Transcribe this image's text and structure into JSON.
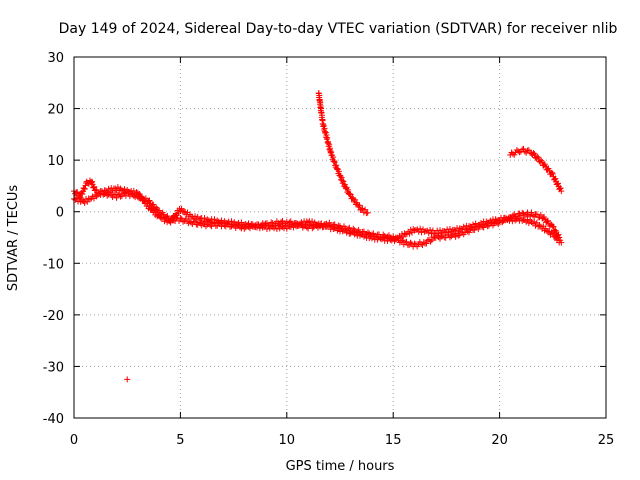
{
  "chart_data": {
    "type": "scatter",
    "title": "Day 149 of 2024, Sidereal Day-to-day VTEC variation (SDTVAR) for receiver nlib",
    "xlabel": "GPS time / hours",
    "ylabel": "SDTVAR / TECUs",
    "xlim": [
      0,
      25
    ],
    "ylim": [
      -40,
      30
    ],
    "xticks": [
      0,
      5,
      10,
      15,
      20,
      25
    ],
    "yticks": [
      -40,
      -30,
      -20,
      -10,
      0,
      10,
      20,
      30
    ],
    "grid": true,
    "marker": "+",
    "colors": {
      "series": "#ff0000"
    },
    "series": [
      {
        "name": "track-1",
        "points": [
          [
            0,
            4
          ],
          [
            0.3,
            3
          ],
          [
            0.6,
            5.5
          ],
          [
            0.8,
            6
          ],
          [
            1,
            4
          ],
          [
            1.5,
            3.5
          ],
          [
            2,
            3
          ],
          [
            2.5,
            3.5
          ],
          [
            3,
            3
          ],
          [
            3.5,
            2
          ],
          [
            4,
            0
          ],
          [
            4.5,
            -1.5
          ],
          [
            5,
            -1.5
          ],
          [
            5.5,
            -2
          ],
          [
            6,
            -2.5
          ],
          [
            7,
            -2.5
          ],
          [
            8,
            -3
          ],
          [
            9,
            -2.5
          ],
          [
            10,
            -2
          ],
          [
            11,
            -3
          ],
          [
            12,
            -2.5
          ],
          [
            13,
            -3.5
          ],
          [
            14,
            -4.5
          ],
          [
            15,
            -5
          ],
          [
            15.5,
            -6
          ],
          [
            16,
            -6.5
          ],
          [
            16.5,
            -6
          ],
          [
            17,
            -5
          ],
          [
            18,
            -4.5
          ],
          [
            19,
            -3
          ],
          [
            20,
            -2
          ],
          [
            20.5,
            -1
          ],
          [
            21,
            -0.5
          ],
          [
            21.5,
            -0.5
          ],
          [
            22,
            -1
          ],
          [
            22.5,
            -3
          ],
          [
            22.8,
            -5
          ]
        ]
      },
      {
        "name": "track-2",
        "points": [
          [
            0,
            2.5
          ],
          [
            0.5,
            2
          ],
          [
            1,
            3
          ],
          [
            1.5,
            4
          ],
          [
            2,
            4.5
          ],
          [
            2.5,
            4
          ],
          [
            3,
            3.5
          ],
          [
            3.5,
            1
          ],
          [
            4,
            -1
          ],
          [
            4.5,
            -2
          ],
          [
            5,
            0.5
          ],
          [
            5.5,
            -1
          ],
          [
            6,
            -1.5
          ],
          [
            7,
            -2
          ],
          [
            8,
            -2.5
          ],
          [
            9,
            -3
          ],
          [
            10,
            -3
          ],
          [
            11,
            -2
          ],
          [
            12,
            -3
          ],
          [
            13,
            -4
          ],
          [
            14,
            -5
          ],
          [
            15,
            -5.5
          ],
          [
            16,
            -3.5
          ],
          [
            17,
            -4
          ],
          [
            18,
            -3.5
          ],
          [
            19,
            -2.5
          ],
          [
            20,
            -1.5
          ],
          [
            21,
            -1.5
          ],
          [
            21.5,
            -2
          ],
          [
            22,
            -3
          ],
          [
            22.5,
            -4.5
          ],
          [
            22.9,
            -6
          ]
        ]
      },
      {
        "name": "track-3",
        "points": [
          [
            11.5,
            23
          ],
          [
            11.6,
            20
          ],
          [
            11.7,
            17
          ],
          [
            11.9,
            14
          ],
          [
            12.1,
            11
          ],
          [
            12.3,
            9
          ],
          [
            12.6,
            6
          ],
          [
            13,
            3
          ],
          [
            13.5,
            0.5
          ],
          [
            13.8,
            -0.2
          ]
        ]
      },
      {
        "name": "track-4",
        "points": [
          [
            20.5,
            11
          ],
          [
            21,
            12
          ],
          [
            21.5,
            11.5
          ],
          [
            22,
            9.5
          ],
          [
            22.5,
            7
          ],
          [
            22.9,
            4
          ]
        ]
      },
      {
        "name": "outlier",
        "points": [
          [
            2.5,
            -32.5
          ]
        ]
      }
    ]
  }
}
